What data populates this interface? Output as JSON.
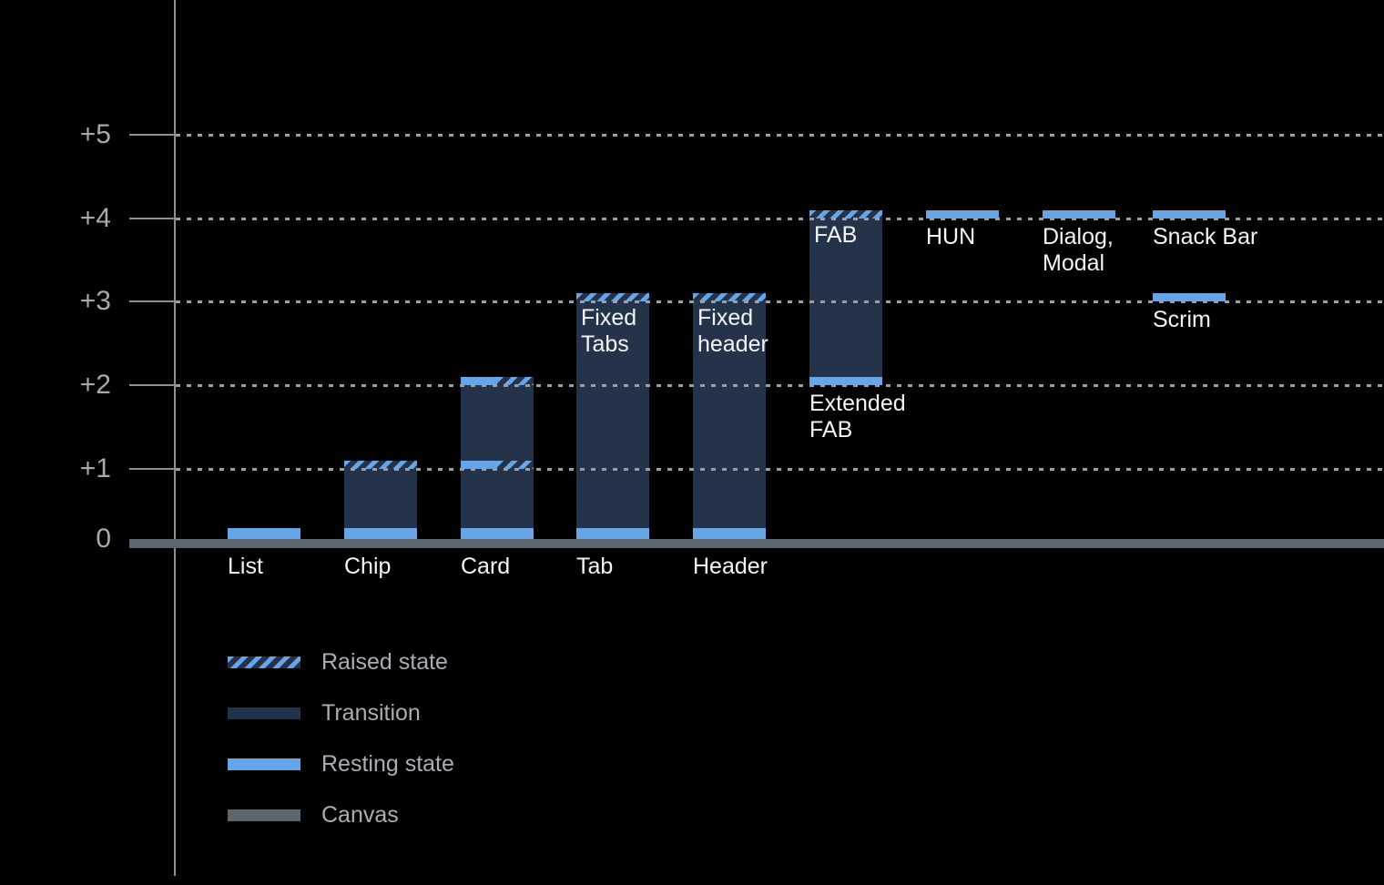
{
  "chart_data": {
    "type": "bar",
    "description": "Elevation diagram of UI components (dark background, waterfall-style elevation bars)",
    "ylabel": "",
    "xlabel": "",
    "ylim": [
      0,
      5.5
    ],
    "grid": "horizontal-dotted",
    "legend_position": "bottom-left",
    "axis": {
      "yticks": [
        {
          "label": "+5",
          "value": 5
        },
        {
          "label": "+4",
          "value": 4
        },
        {
          "label": "+3",
          "value": 3
        },
        {
          "label": "+2",
          "value": 2
        },
        {
          "label": "+1",
          "value": 1
        },
        {
          "label": "0",
          "value": 0
        }
      ]
    },
    "bars": [
      {
        "name": "list",
        "label": "List",
        "label_placement": "below-canvas",
        "segments": [
          {
            "type": "resting",
            "from": 0,
            "to": 0.15
          }
        ]
      },
      {
        "name": "chip",
        "label": "Chip",
        "label_placement": "below-canvas",
        "segments": [
          {
            "type": "resting",
            "from": 0,
            "to": 0.15
          },
          {
            "type": "transition",
            "from": 0.15,
            "to": 1.0
          },
          {
            "type": "raised",
            "from": 1.0,
            "to": 1.1
          }
        ]
      },
      {
        "name": "card",
        "label": "Card",
        "label_placement": "below-canvas",
        "segments": [
          {
            "type": "resting",
            "from": 0,
            "to": 0.15
          },
          {
            "type": "transition",
            "from": 0.15,
            "to": 1.0
          },
          {
            "type": "resting-raised",
            "from": 1.0,
            "to": 1.1
          },
          {
            "type": "transition",
            "from": 1.1,
            "to": 2.0
          },
          {
            "type": "resting-raised",
            "from": 2.0,
            "to": 2.1
          }
        ]
      },
      {
        "name": "tab",
        "label": "Tab",
        "label_placement": "below-canvas",
        "label2": "Fixed\nTabs",
        "label2_placement": "inside-top",
        "segments": [
          {
            "type": "resting",
            "from": 0,
            "to": 0.15
          },
          {
            "type": "transition",
            "from": 0.15,
            "to": 3.0
          },
          {
            "type": "raised",
            "from": 3.0,
            "to": 3.1
          }
        ]
      },
      {
        "name": "header",
        "label": "Header",
        "label_placement": "below-canvas",
        "label2": "Fixed\nheader",
        "label2_placement": "inside-top",
        "segments": [
          {
            "type": "resting",
            "from": 0,
            "to": 0.15
          },
          {
            "type": "transition",
            "from": 0.15,
            "to": 3.0
          },
          {
            "type": "raised",
            "from": 3.0,
            "to": 3.1
          }
        ]
      },
      {
        "name": "fab",
        "label": "FAB",
        "label_placement": "inside-top",
        "label2": "Extended\nFAB",
        "label2_placement": "below-bar",
        "segments": [
          {
            "type": "resting",
            "from": 2.0,
            "to": 2.1
          },
          {
            "type": "transition",
            "from": 2.1,
            "to": 4.0
          },
          {
            "type": "raised",
            "from": 4.0,
            "to": 4.1
          }
        ]
      },
      {
        "name": "hun",
        "label": "HUN",
        "label_placement": "below-bar",
        "segments": [
          {
            "type": "resting",
            "from": 4.0,
            "to": 4.1
          }
        ]
      },
      {
        "name": "dialog",
        "label": "Dialog,\nModal",
        "label_placement": "below-bar",
        "segments": [
          {
            "type": "resting",
            "from": 4.0,
            "to": 4.1
          }
        ]
      },
      {
        "name": "snackbar",
        "label": "Snack Bar",
        "label_placement": "below-bar",
        "segments": [
          {
            "type": "resting",
            "from": 4.0,
            "to": 4.1
          }
        ]
      },
      {
        "name": "scrim",
        "label": "Scrim",
        "label_placement": "below-bar",
        "segments": [
          {
            "type": "resting",
            "from": 3.0,
            "to": 3.1
          }
        ]
      }
    ],
    "legend": [
      {
        "label": "Raised state",
        "style": "raised"
      },
      {
        "label": "Transition",
        "style": "transition"
      },
      {
        "label": "Resting state",
        "style": "resting"
      },
      {
        "label": "Canvas",
        "style": "canvas"
      }
    ]
  },
  "colors": {
    "background": "#000000",
    "resting_blue": "#66A6E8",
    "transition_navy": "#24334A",
    "canvas_gray": "#5C6670",
    "axis_gray": "#8A9097",
    "grid_gray": "#9AA0A6",
    "ytick_label": "#A5AAB0",
    "bar_label": "#F2F4F5",
    "legend_label": "#A9AEB4"
  }
}
